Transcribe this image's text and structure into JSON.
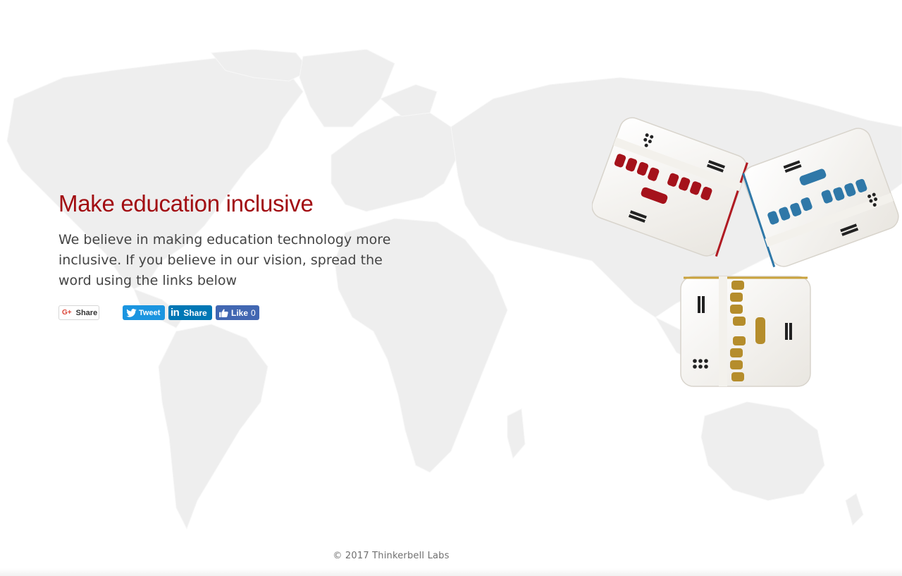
{
  "hero": {
    "headline": "Make education inclusive",
    "blurb": "We believe in making education technology more inclusive. If you believe in our vision, spread the word using the links below"
  },
  "share": {
    "google_plus_label": "Share",
    "tweet_label": "Tweet",
    "linkedin_label": "Share",
    "facebook_label": "Like",
    "facebook_count": "0"
  },
  "footer": {
    "copyright": "© 2017 Thinkerbell Labs"
  },
  "colors": {
    "headline": "#a20d12",
    "map": "#eeeeee",
    "twitter": "#1b95e0",
    "linkedin": "#0077b5",
    "facebook": "#4267b2",
    "device_red": "#a5121b",
    "device_blue": "#2f78a8",
    "device_gold": "#b58d2c"
  },
  "icons": {
    "map": "world-map-icon",
    "google": "google-plus-icon",
    "twitter": "twitter-bird-icon",
    "linkedin": "linkedin-icon",
    "facebook": "thumbs-up-icon"
  }
}
